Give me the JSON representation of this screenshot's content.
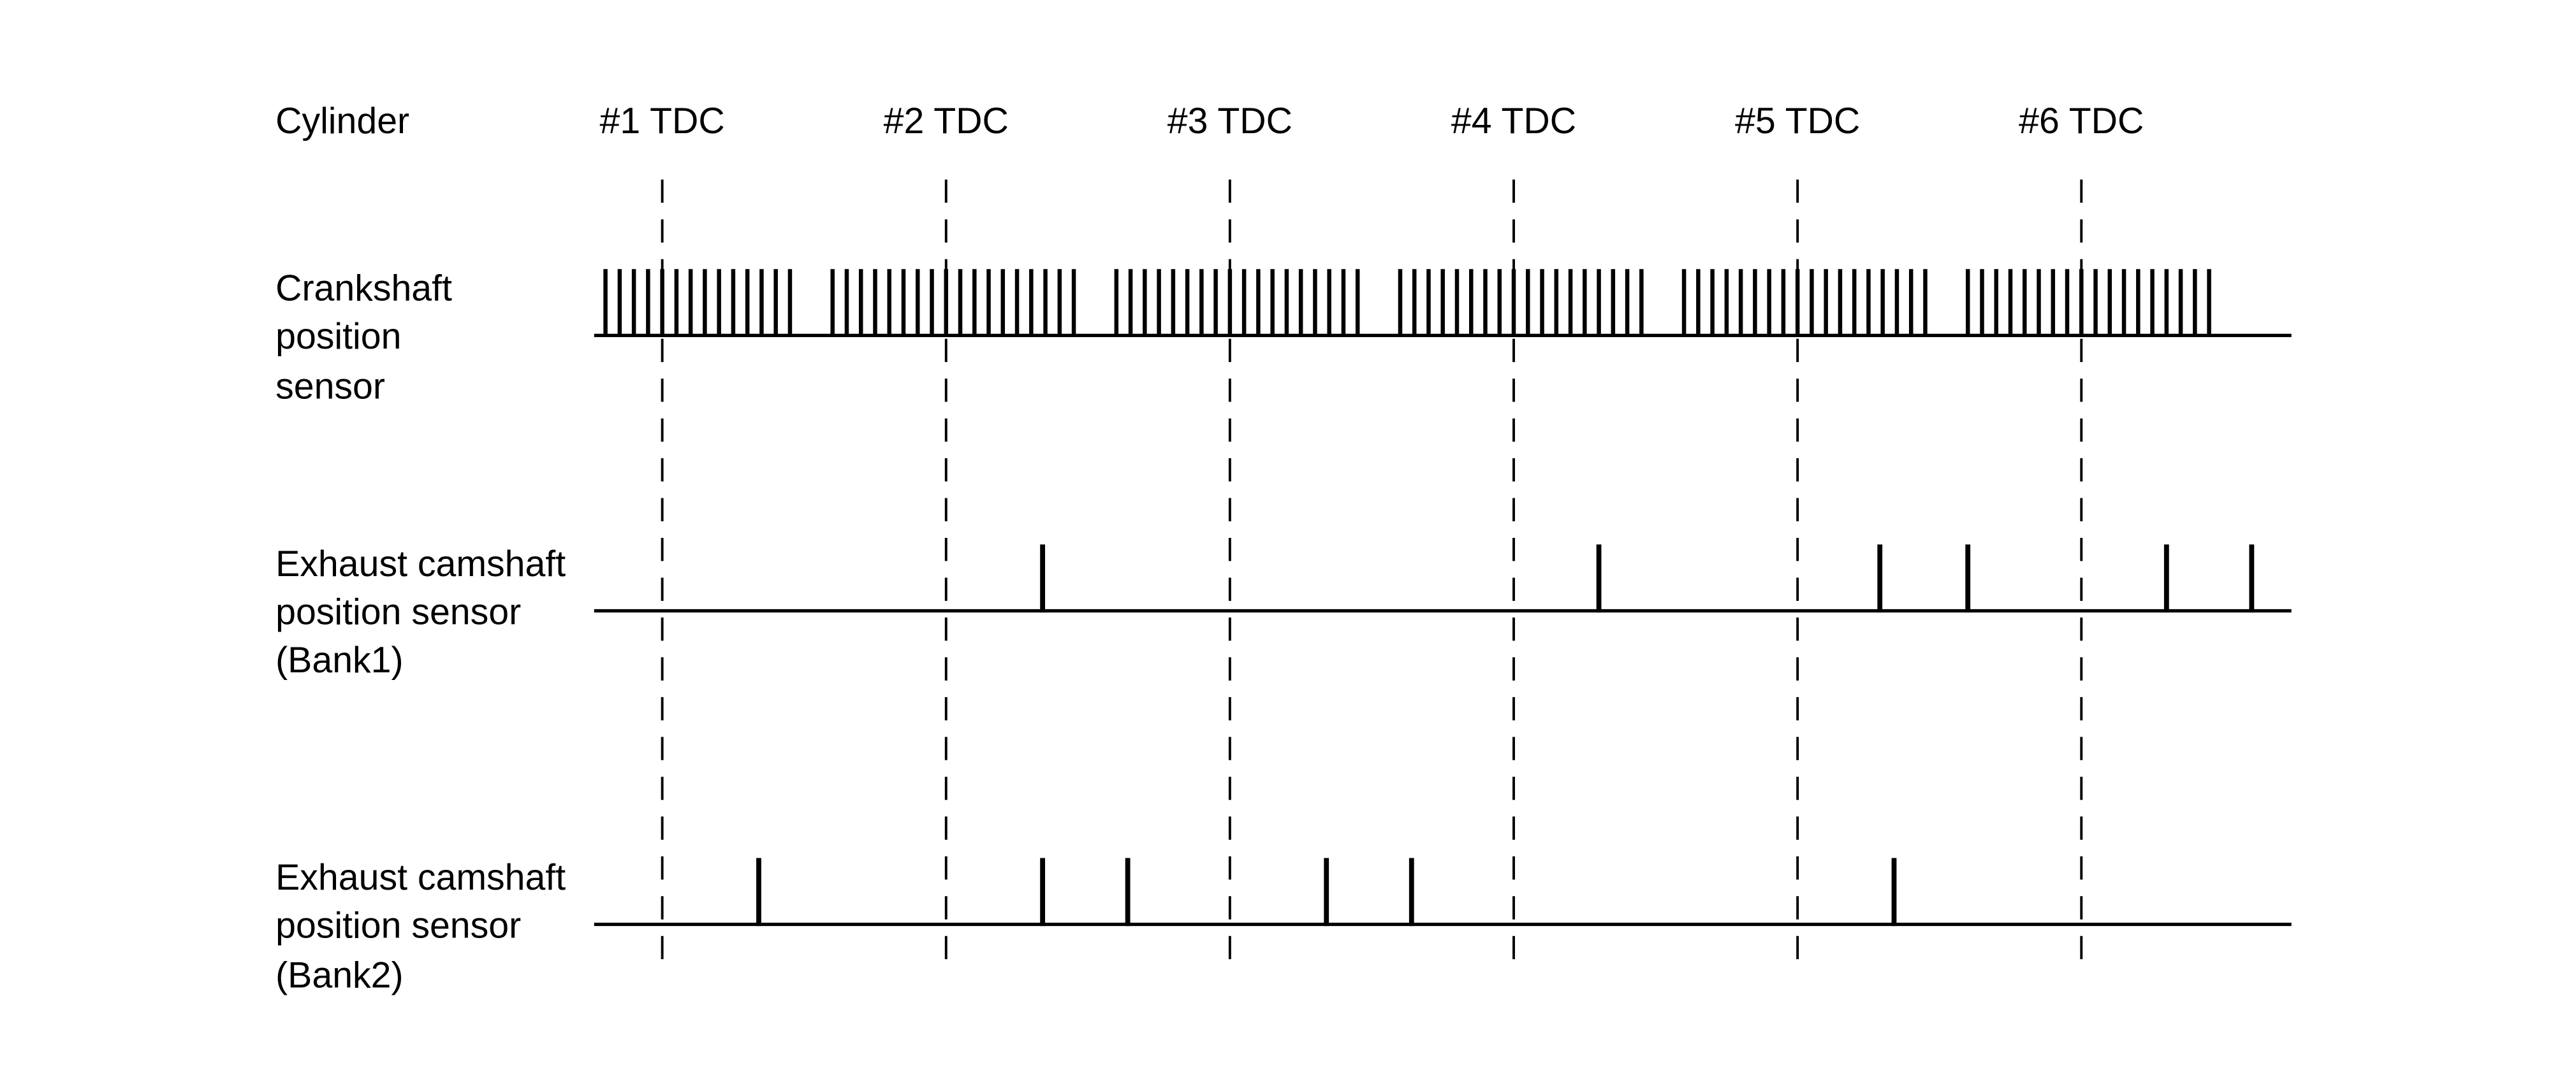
{
  "header": {
    "row_label": "Cylinder",
    "tdc_labels": [
      "#1 TDC",
      "#2 TDC",
      "#3 TDC",
      "#4 TDC",
      "#5 TDC",
      "#6 TDC"
    ]
  },
  "signals": {
    "crank": {
      "lines": [
        "Crankshaft",
        "position",
        "sensor"
      ]
    },
    "bank1": {
      "lines": [
        "Exhaust camshaft",
        "position sensor",
        "(Bank1)"
      ]
    },
    "bank2": {
      "lines": [
        "Exhaust camshaft",
        "position sensor",
        "(Bank2)"
      ]
    }
  },
  "chart_data": {
    "type": "timing-diagram",
    "x_units": "TDC intervals (0 = #1 TDC)",
    "x_range": [
      -0.24,
      5.74
    ],
    "tdc_marks": [
      0,
      1,
      2,
      3,
      4,
      5
    ],
    "crank": {
      "teeth_per_group": 18,
      "missing_teeth_per_group": 2,
      "group_start_offset": -0.4,
      "positions_per_interval": 20
    },
    "bank1_pulses": [
      1.34,
      3.3,
      4.29,
      4.6,
      5.3,
      5.6
    ],
    "bank2_pulses": [
      0.34,
      1.34,
      1.64,
      2.34,
      2.64,
      4.34
    ],
    "color": "#000000"
  }
}
